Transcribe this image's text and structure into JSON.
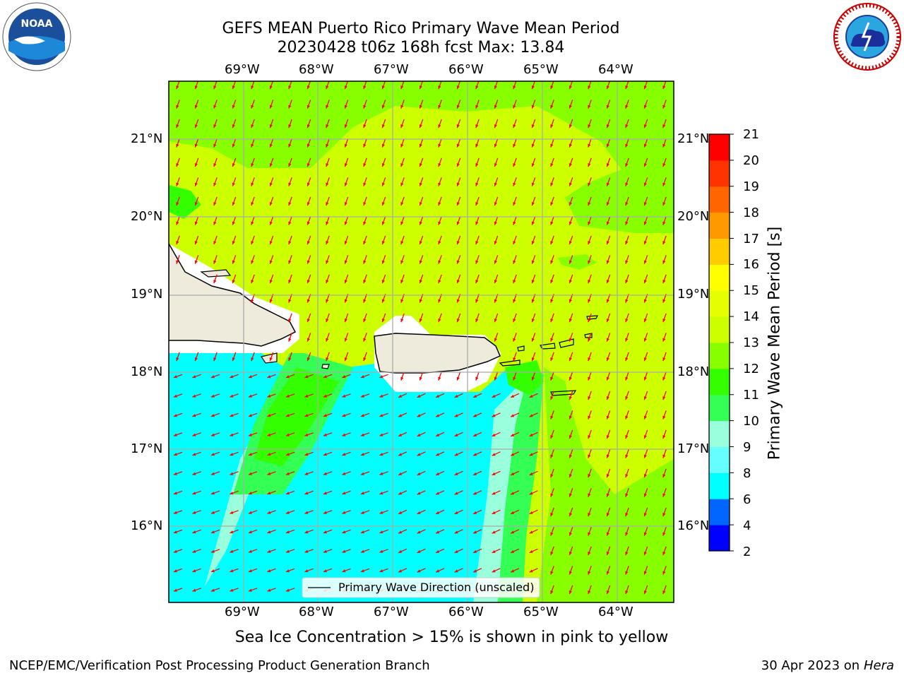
{
  "title_line1": "GEFS MEAN Puerto Rico Primary Wave Mean Period",
  "title_line2": "20230428 t06z 168h fcst   Max: 13.84",
  "lon_labels": [
    "69°W",
    "68°W",
    "67°W",
    "66°W",
    "65°W",
    "64°W"
  ],
  "lat_labels": [
    "21°N",
    "20°N",
    "19°N",
    "18°N",
    "17°N",
    "16°N"
  ],
  "colorbar": {
    "label": "Primary Wave Mean Period [s]",
    "ticks": [
      "21",
      "20",
      "19",
      "18",
      "17",
      "16",
      "15",
      "14",
      "13",
      "12",
      "11",
      "10",
      "9",
      "8",
      "6",
      "4",
      "2"
    ],
    "colors": [
      "#0000ff",
      "#0066ff",
      "#00ffff",
      "#66ffff",
      "#99ffdd",
      "#33ff55",
      "#33ff00",
      "#88ff00",
      "#ccff00",
      "#e6ff00",
      "#ffff00",
      "#ffcc00",
      "#ff9900",
      "#ff6600",
      "#ff3300",
      "#ff0000"
    ]
  },
  "legend_text": "Primary Wave Direction (unscaled)",
  "sea_ice_note": "Sea Ice Concentration > 15% is shown in pink to yellow",
  "footer_left": "NCEP/EMC/Verification Post Processing Product Generation Branch",
  "footer_date": "30 Apr 2023 on ",
  "footer_machine": "Hera",
  "logos": {
    "left": "NOAA",
    "right": "NATIONAL WEATHER SERVICE"
  }
}
